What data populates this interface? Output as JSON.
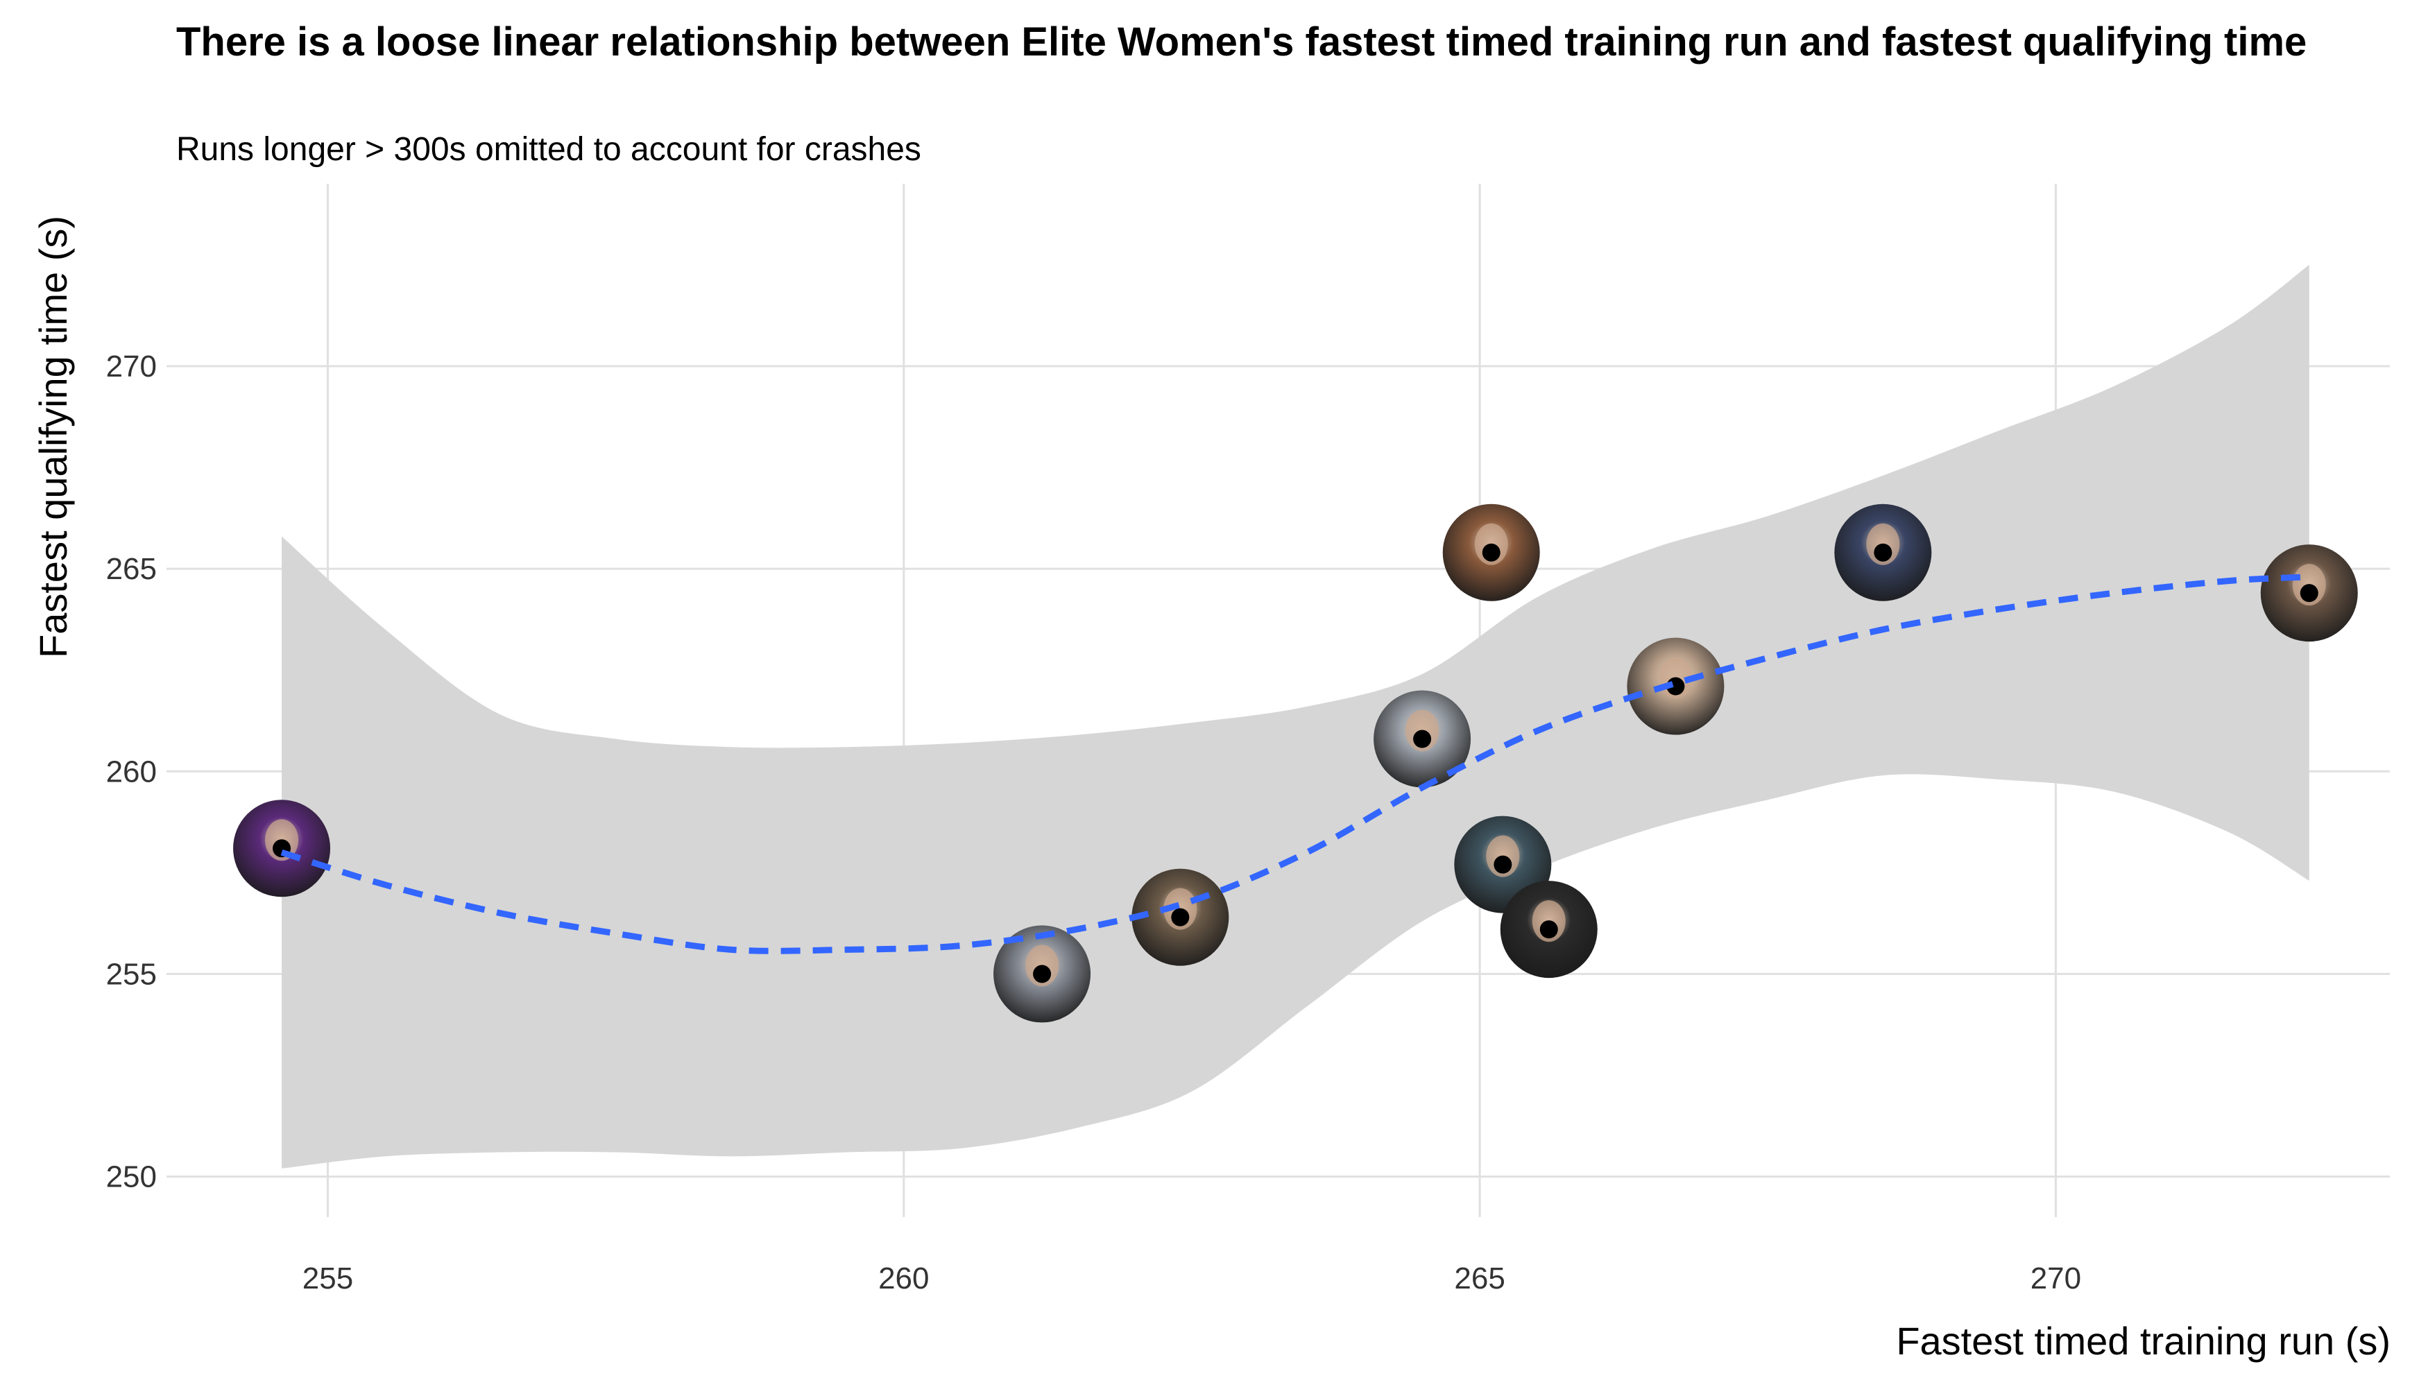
{
  "chart_data": {
    "type": "scatter",
    "title": "There is a loose linear relationship between Elite Women's fastest timed training run and fastest qualifying time",
    "subtitle": "Runs longer > 300s omitted to account for crashes",
    "xlabel": "Fastest timed training run (s)",
    "ylabel": "Fastest qualifying time (s)",
    "xlim": [
      253.6,
      272.9
    ],
    "ylim": [
      249.0,
      274.5
    ],
    "x_ticks": [
      "255",
      "260",
      "265",
      "270"
    ],
    "y_ticks": [
      "250",
      "255",
      "260",
      "265",
      "270"
    ],
    "grid": true,
    "legend": "none",
    "points": [
      {
        "x": 254.6,
        "y": 258.1,
        "photo_tone": "#5b2a7a"
      },
      {
        "x": 261.2,
        "y": 255.0,
        "photo_tone": "#8a8f98"
      },
      {
        "x": 262.4,
        "y": 256.4,
        "photo_tone": "#6b5a48"
      },
      {
        "x": 264.5,
        "y": 260.8,
        "photo_tone": "#9aa0a8"
      },
      {
        "x": 265.1,
        "y": 265.4,
        "photo_tone": "#8a5a3c"
      },
      {
        "x": 265.2,
        "y": 257.7,
        "photo_tone": "#3f5560"
      },
      {
        "x": 265.6,
        "y": 256.1,
        "photo_tone": "#2b2b2b"
      },
      {
        "x": 266.7,
        "y": 262.1,
        "photo_tone": "#b9a08a"
      },
      {
        "x": 268.5,
        "y": 265.4,
        "photo_tone": "#3a4565"
      },
      {
        "x": 272.2,
        "y": 264.4,
        "photo_tone": "#6a5545"
      }
    ],
    "smooth": {
      "method": "loess",
      "line_color": "#3366FF",
      "band_color": "#d6d6d6",
      "x": [
        254.6,
        255.5,
        256.5,
        257.5,
        258.5,
        259.5,
        260.5,
        261.5,
        262.5,
        263.5,
        264.5,
        265.5,
        266.5,
        267.5,
        268.5,
        269.5,
        270.5,
        271.5,
        272.2
      ],
      "y": [
        258.0,
        257.2,
        256.5,
        256.0,
        255.6,
        255.6,
        255.7,
        256.1,
        256.8,
        258.0,
        259.6,
        261.0,
        262.0,
        262.8,
        263.5,
        264.0,
        264.4,
        264.7,
        264.8
      ],
      "lower": [
        250.2,
        250.5,
        250.6,
        250.6,
        250.5,
        250.6,
        250.7,
        251.2,
        252.1,
        254.2,
        256.3,
        257.6,
        258.6,
        259.3,
        259.9,
        259.8,
        259.5,
        258.5,
        257.3
      ],
      "upper": [
        265.8,
        263.5,
        261.4,
        260.8,
        260.6,
        260.6,
        260.7,
        260.9,
        261.2,
        261.6,
        262.4,
        264.3,
        265.5,
        266.3,
        267.3,
        268.4,
        269.5,
        271.0,
        272.5
      ]
    }
  }
}
